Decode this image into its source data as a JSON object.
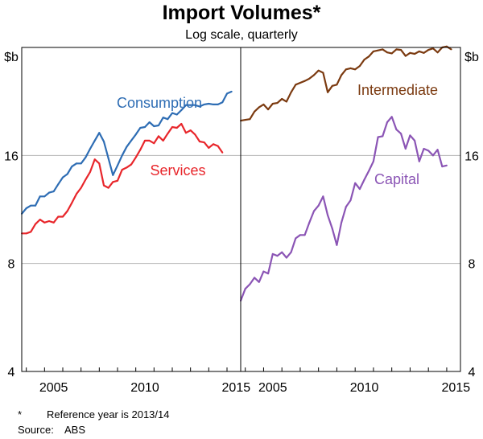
{
  "chart_data": {
    "type": "line",
    "title": "Import Volumes*",
    "subtitle": "Log scale, quarterly",
    "unit_label": "$b",
    "y_scale": "log",
    "ylim": [
      4,
      32
    ],
    "yticks": [
      4,
      8,
      16
    ],
    "xlim": [
      2003.75,
      2015.75
    ],
    "xticks": [
      2005,
      2010,
      2015
    ],
    "panels": [
      {
        "name": "left",
        "series": [
          {
            "name": "Consumption",
            "color": "#2e6db4",
            "points": [
              [
                2003.75,
                11.0
              ],
              [
                2004.0,
                11.4
              ],
              [
                2004.25,
                11.6
              ],
              [
                2004.5,
                11.6
              ],
              [
                2004.75,
                12.3
              ],
              [
                2005.0,
                12.3
              ],
              [
                2005.25,
                12.6
              ],
              [
                2005.5,
                12.7
              ],
              [
                2005.75,
                13.3
              ],
              [
                2006.0,
                13.9
              ],
              [
                2006.25,
                14.2
              ],
              [
                2006.5,
                14.9
              ],
              [
                2006.75,
                15.2
              ],
              [
                2007.0,
                15.2
              ],
              [
                2007.25,
                15.8
              ],
              [
                2007.5,
                16.7
              ],
              [
                2007.75,
                17.6
              ],
              [
                2008.0,
                18.5
              ],
              [
                2008.25,
                17.5
              ],
              [
                2008.5,
                15.7
              ],
              [
                2008.75,
                14.1
              ],
              [
                2009.0,
                15.0
              ],
              [
                2009.25,
                16.0
              ],
              [
                2009.5,
                16.9
              ],
              [
                2009.75,
                17.6
              ],
              [
                2010.0,
                18.3
              ],
              [
                2010.25,
                19.1
              ],
              [
                2010.5,
                19.2
              ],
              [
                2010.75,
                19.8
              ],
              [
                2011.0,
                19.3
              ],
              [
                2011.25,
                19.4
              ],
              [
                2011.5,
                20.4
              ],
              [
                2011.75,
                20.2
              ],
              [
                2012.0,
                21.0
              ],
              [
                2012.25,
                20.8
              ],
              [
                2012.5,
                21.4
              ],
              [
                2012.75,
                22.1
              ],
              [
                2013.0,
                22.1
              ],
              [
                2013.25,
                22.1
              ],
              [
                2013.5,
                21.9
              ],
              [
                2013.75,
                22.2
              ],
              [
                2014.0,
                22.3
              ],
              [
                2014.25,
                22.2
              ],
              [
                2014.5,
                22.2
              ],
              [
                2014.75,
                22.5
              ],
              [
                2015.0,
                23.8
              ],
              [
                2015.25,
                24.1
              ]
            ]
          },
          {
            "name": "Services",
            "color": "#e8262b",
            "points": [
              [
                2003.75,
                9.7
              ],
              [
                2004.0,
                9.7
              ],
              [
                2004.25,
                9.8
              ],
              [
                2004.5,
                10.3
              ],
              [
                2004.75,
                10.6
              ],
              [
                2005.0,
                10.4
              ],
              [
                2005.25,
                10.5
              ],
              [
                2005.5,
                10.4
              ],
              [
                2005.75,
                10.8
              ],
              [
                2006.0,
                10.8
              ],
              [
                2006.25,
                11.2
              ],
              [
                2006.5,
                11.8
              ],
              [
                2006.75,
                12.5
              ],
              [
                2007.0,
                13.0
              ],
              [
                2007.25,
                13.7
              ],
              [
                2007.5,
                14.4
              ],
              [
                2007.75,
                15.6
              ],
              [
                2008.0,
                15.2
              ],
              [
                2008.25,
                13.2
              ],
              [
                2008.5,
                13.0
              ],
              [
                2008.75,
                13.5
              ],
              [
                2009.0,
                13.6
              ],
              [
                2009.25,
                14.6
              ],
              [
                2009.5,
                14.8
              ],
              [
                2009.75,
                15.1
              ],
              [
                2010.0,
                15.8
              ],
              [
                2010.25,
                16.6
              ],
              [
                2010.5,
                17.6
              ],
              [
                2010.75,
                17.6
              ],
              [
                2011.0,
                17.3
              ],
              [
                2011.25,
                18.1
              ],
              [
                2011.5,
                17.6
              ],
              [
                2011.75,
                18.4
              ],
              [
                2012.0,
                19.2
              ],
              [
                2012.25,
                19.1
              ],
              [
                2012.5,
                19.6
              ],
              [
                2012.75,
                18.5
              ],
              [
                2013.0,
                18.8
              ],
              [
                2013.25,
                18.3
              ],
              [
                2013.5,
                17.5
              ],
              [
                2013.75,
                17.4
              ],
              [
                2014.0,
                16.8
              ],
              [
                2014.25,
                17.2
              ],
              [
                2014.5,
                17.0
              ],
              [
                2014.75,
                16.3
              ]
            ]
          }
        ]
      },
      {
        "name": "right",
        "series": [
          {
            "name": "Intermediate",
            "color": "#7b3a10",
            "points": [
              [
                2003.75,
                20.0
              ],
              [
                2004.0,
                20.1
              ],
              [
                2004.25,
                20.2
              ],
              [
                2004.5,
                21.2
              ],
              [
                2004.75,
                21.8
              ],
              [
                2005.0,
                22.2
              ],
              [
                2005.25,
                21.5
              ],
              [
                2005.5,
                22.3
              ],
              [
                2005.75,
                22.4
              ],
              [
                2006.0,
                23.0
              ],
              [
                2006.25,
                22.6
              ],
              [
                2006.5,
                24.0
              ],
              [
                2006.75,
                25.2
              ],
              [
                2007.0,
                25.5
              ],
              [
                2007.25,
                25.8
              ],
              [
                2007.5,
                26.2
              ],
              [
                2007.75,
                26.8
              ],
              [
                2008.0,
                27.6
              ],
              [
                2008.25,
                27.2
              ],
              [
                2008.5,
                24.0
              ],
              [
                2008.75,
                25.0
              ],
              [
                2009.0,
                25.2
              ],
              [
                2009.25,
                26.8
              ],
              [
                2009.5,
                27.8
              ],
              [
                2009.75,
                28.0
              ],
              [
                2010.0,
                27.8
              ],
              [
                2010.25,
                28.4
              ],
              [
                2010.5,
                29.6
              ],
              [
                2010.75,
                30.2
              ],
              [
                2011.0,
                31.2
              ],
              [
                2011.25,
                31.4
              ],
              [
                2011.5,
                31.6
              ],
              [
                2011.75,
                31.0
              ],
              [
                2012.0,
                30.8
              ],
              [
                2012.25,
                31.6
              ],
              [
                2012.5,
                31.5
              ],
              [
                2012.75,
                30.3
              ],
              [
                2013.0,
                30.9
              ],
              [
                2013.25,
                30.7
              ],
              [
                2013.5,
                31.2
              ],
              [
                2013.75,
                30.9
              ],
              [
                2014.0,
                31.5
              ],
              [
                2014.25,
                31.8
              ],
              [
                2014.5,
                31.0
              ],
              [
                2014.75,
                32.0
              ],
              [
                2015.0,
                32.2
              ],
              [
                2015.25,
                31.6
              ]
            ]
          },
          {
            "name": "Capital",
            "color": "#8b55b5",
            "points": [
              [
                2003.75,
                6.3
              ],
              [
                2004.0,
                6.8
              ],
              [
                2004.25,
                7.0
              ],
              [
                2004.5,
                7.3
              ],
              [
                2004.75,
                7.1
              ],
              [
                2005.0,
                7.6
              ],
              [
                2005.25,
                7.5
              ],
              [
                2005.5,
                8.5
              ],
              [
                2005.75,
                8.4
              ],
              [
                2006.0,
                8.6
              ],
              [
                2006.25,
                8.3
              ],
              [
                2006.5,
                8.6
              ],
              [
                2006.75,
                9.4
              ],
              [
                2007.0,
                9.6
              ],
              [
                2007.25,
                9.6
              ],
              [
                2007.5,
                10.4
              ],
              [
                2007.75,
                11.2
              ],
              [
                2008.0,
                11.6
              ],
              [
                2008.25,
                12.3
              ],
              [
                2008.5,
                10.9
              ],
              [
                2008.75,
                10.0
              ],
              [
                2009.0,
                9.0
              ],
              [
                2009.25,
                10.4
              ],
              [
                2009.5,
                11.5
              ],
              [
                2009.75,
                12.0
              ],
              [
                2010.0,
                13.4
              ],
              [
                2010.25,
                12.9
              ],
              [
                2010.5,
                13.7
              ],
              [
                2010.75,
                14.5
              ],
              [
                2011.0,
                15.4
              ],
              [
                2011.25,
                18.0
              ],
              [
                2011.5,
                18.1
              ],
              [
                2011.75,
                19.8
              ],
              [
                2012.0,
                20.5
              ],
              [
                2012.25,
                18.9
              ],
              [
                2012.5,
                18.4
              ],
              [
                2012.75,
                16.7
              ],
              [
                2013.0,
                18.2
              ],
              [
                2013.25,
                17.6
              ],
              [
                2013.5,
                15.4
              ],
              [
                2013.75,
                16.7
              ],
              [
                2014.0,
                16.5
              ],
              [
                2014.25,
                16.0
              ],
              [
                2014.5,
                16.6
              ],
              [
                2014.75,
                14.9
              ],
              [
                2015.0,
                15.0
              ]
            ]
          }
        ]
      }
    ]
  },
  "footnotes": [
    {
      "marker": "*",
      "text": "Reference year is 2013/14"
    },
    {
      "marker": "Source:",
      "text": "ABS"
    }
  ]
}
